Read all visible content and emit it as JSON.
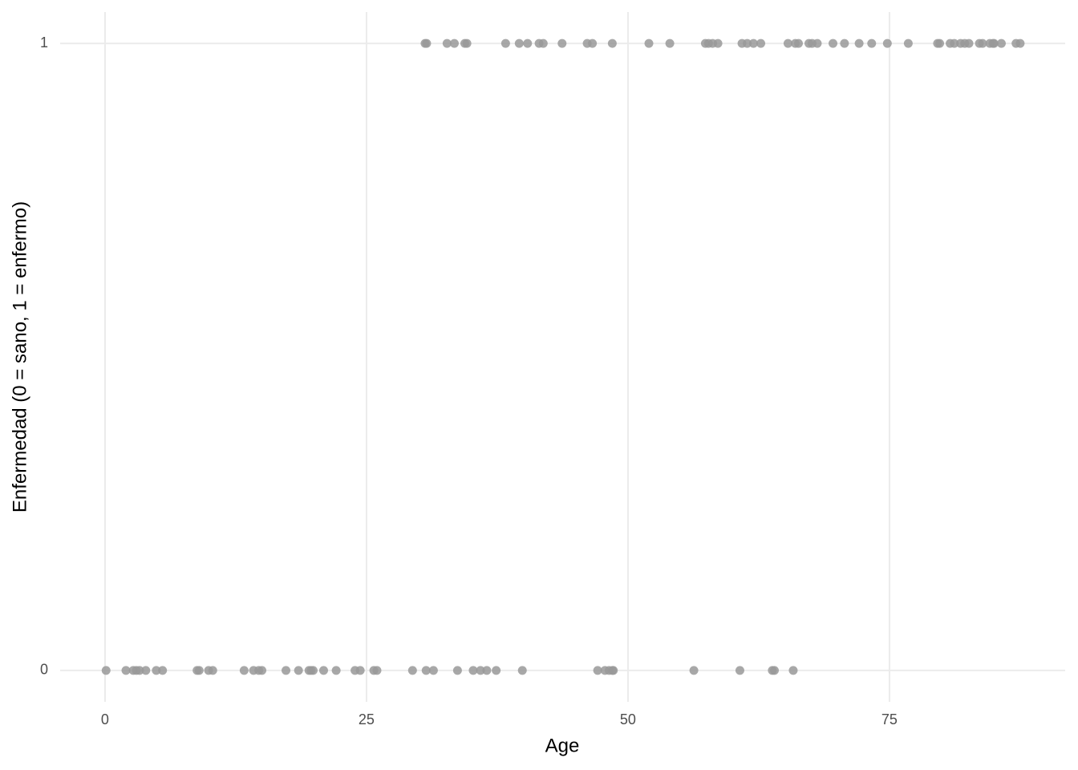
{
  "chart_data": {
    "type": "scatter",
    "x_label": "Age",
    "y_label": "Enfermedad (0 = sano, 1 = enfermo)",
    "xlim": [
      -4.29,
      91.8
    ],
    "ylim": [
      -0.05,
      1.05
    ],
    "xticks": [
      0,
      25,
      50,
      75
    ],
    "yticks": [
      0,
      1
    ],
    "grid": true,
    "series": [
      {
        "color": "#999999",
        "x": [
          30.6,
          30.75,
          32.7,
          33.4,
          34.4,
          34.6,
          38.3,
          39.6,
          40.4,
          41.5,
          41.9,
          43.7,
          46.1,
          46.6,
          48.5,
          52.0,
          54.0,
          57.4,
          57.7,
          58.1,
          58.6,
          60.9,
          61.4,
          62.0,
          62.7,
          65.3,
          66.0,
          66.3,
          67.3,
          67.6,
          68.1,
          69.6,
          70.7,
          72.1,
          73.3,
          74.8,
          76.8,
          79.6,
          79.8,
          80.8,
          81.2,
          81.8,
          82.2,
          82.6,
          83.6,
          83.9,
          84.6,
          84.9,
          85.0,
          85.7,
          87.1,
          87.5,
          0.1,
          2.0,
          2.7,
          3.0,
          3.3,
          3.9,
          4.9,
          5.5,
          8.8,
          9.0,
          9.9,
          10.3,
          13.3,
          14.2,
          14.7,
          15.0,
          17.3,
          18.5,
          19.5,
          19.7,
          19.9,
          20.9,
          22.1,
          23.9,
          24.4,
          25.7,
          26.0,
          29.4,
          30.7,
          31.4,
          33.7,
          35.2,
          35.9,
          36.5,
          37.4,
          39.9,
          47.1,
          47.8,
          48.2,
          48.5,
          48.6,
          56.3,
          60.7,
          63.8,
          64.0,
          65.8
        ],
        "values": [
          1,
          1,
          1,
          1,
          1,
          1,
          1,
          1,
          1,
          1,
          1,
          1,
          1,
          1,
          1,
          1,
          1,
          1,
          1,
          1,
          1,
          1,
          1,
          1,
          1,
          1,
          1,
          1,
          1,
          1,
          1,
          1,
          1,
          1,
          1,
          1,
          1,
          1,
          1,
          1,
          1,
          1,
          1,
          1,
          1,
          1,
          1,
          1,
          1,
          1,
          1,
          1,
          0,
          0,
          0,
          0,
          0,
          0,
          0,
          0,
          0,
          0,
          0,
          0,
          0,
          0,
          0,
          0,
          0,
          0,
          0,
          0,
          0,
          0,
          0,
          0,
          0,
          0,
          0,
          0,
          0,
          0,
          0,
          0,
          0,
          0,
          0,
          0,
          0,
          0,
          0,
          0,
          0,
          0,
          0,
          0,
          0,
          0
        ]
      }
    ]
  }
}
